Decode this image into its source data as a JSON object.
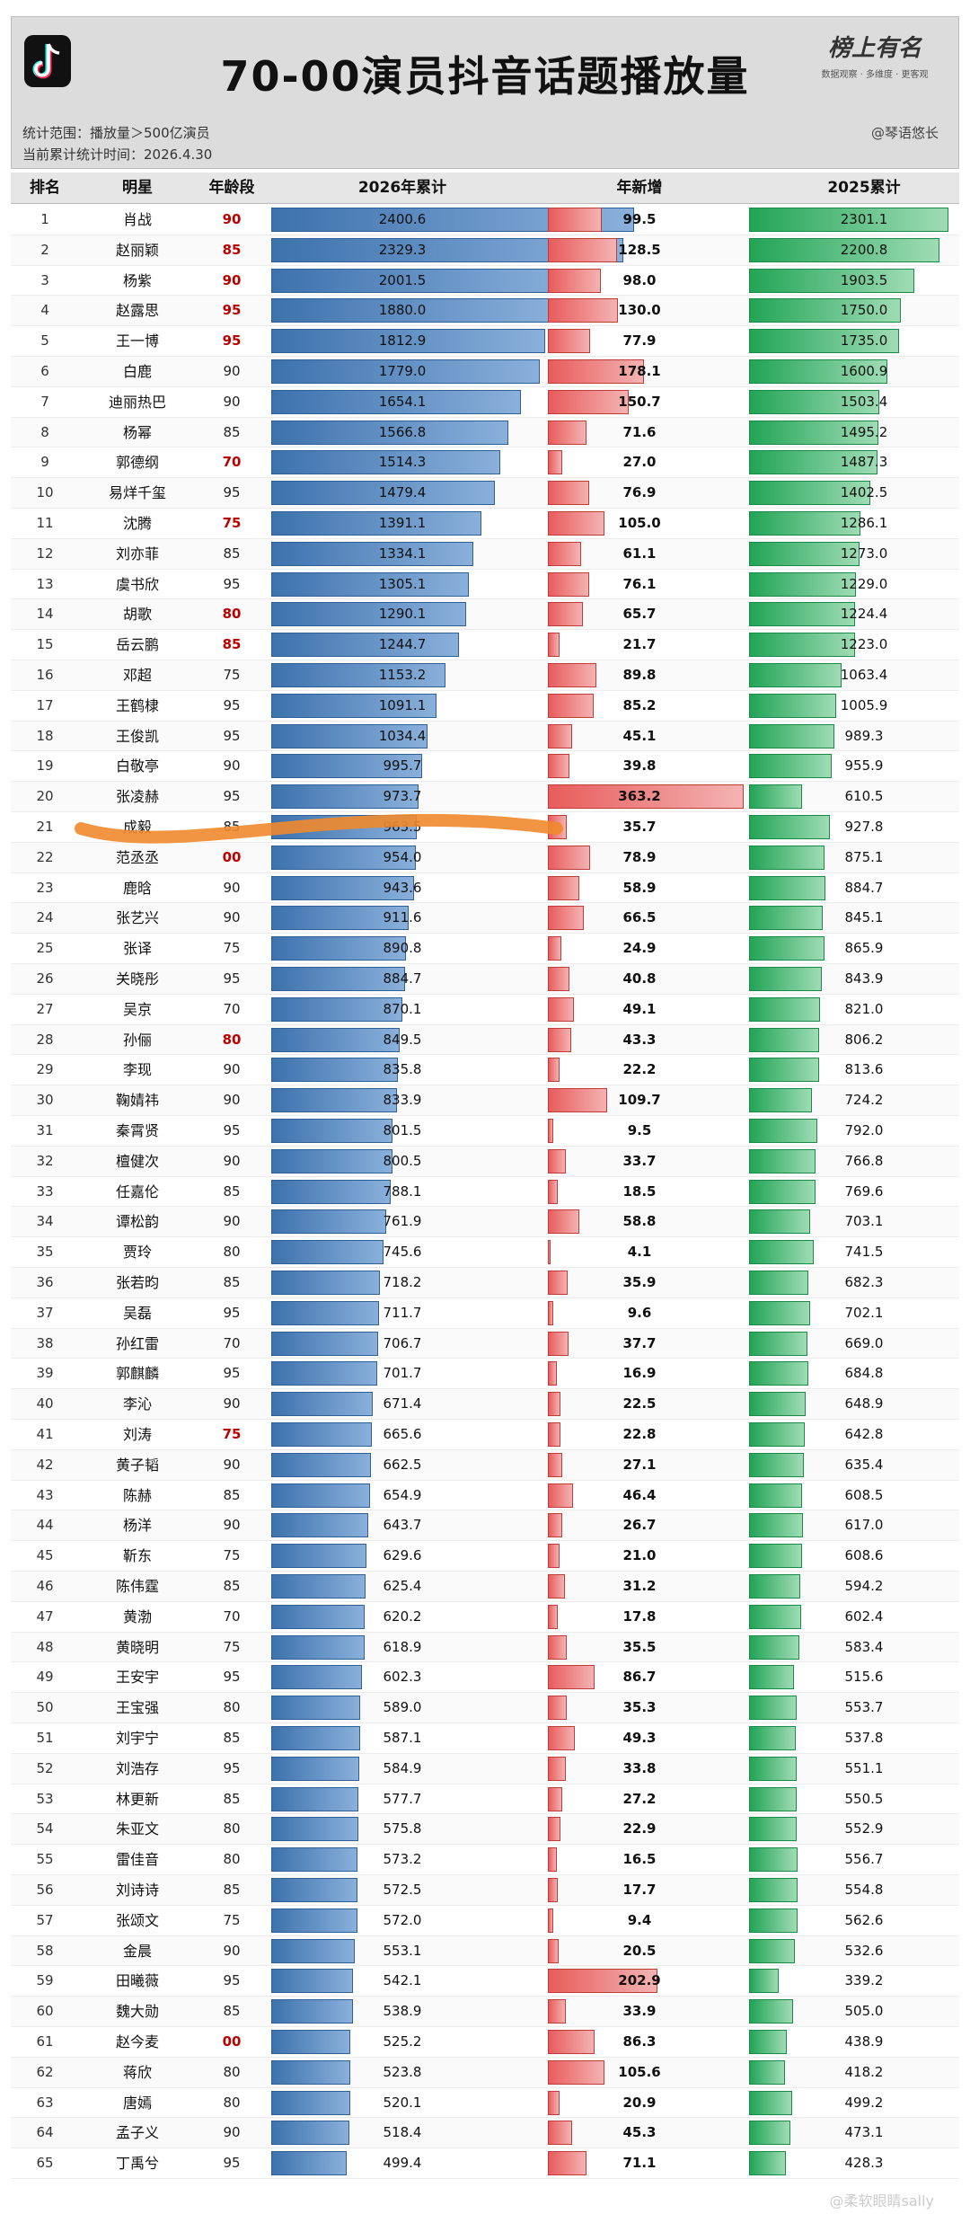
{
  "header": {
    "title": "70-00演员抖音话题播放量",
    "brand": "榜上有名",
    "brand_sub": "数据观察 · 多维度 · 更客观",
    "author": "@琴语悠长",
    "meta_scope": "统计范围：播放量＞500亿演员",
    "meta_time": "当前累计统计时间：2026.4.30"
  },
  "columns": {
    "rank": "排名",
    "name": "明星",
    "age": "年龄段",
    "c2026": "2026年累计",
    "new": "年新增",
    "c2025": "2025累计"
  },
  "colors": {
    "blue": "#3d72ad",
    "red": "#e85c5c",
    "green": "#22a456",
    "stroke": "#f08a2e",
    "age_highlight": "#b00000"
  },
  "icons": {
    "logo": "tiktok-logo-icon"
  },
  "footer": "@柔软眼睛sally",
  "chart_data": {
    "type": "table",
    "title": "70-00演员抖音话题播放量",
    "max_2026": 2400.6,
    "max_new": 363.2,
    "max_2025": 2301.1,
    "rows": [
      {
        "rank": "1",
        "name": "肖战",
        "age": "90",
        "c2026": 2400.6,
        "new": 99.5,
        "c2025": 2301.1
      },
      {
        "rank": "2",
        "name": "赵丽颖",
        "age": "85",
        "c2026": 2329.3,
        "new": 128.5,
        "c2025": 2200.8
      },
      {
        "rank": "3",
        "name": "杨紫",
        "age": "90",
        "c2026": 2001.5,
        "new": 98.0,
        "c2025": 1903.5
      },
      {
        "rank": "4",
        "name": "赵露思",
        "age": "95",
        "c2026": 1880.0,
        "new": 130.0,
        "c2025": 1750.0
      },
      {
        "rank": "5",
        "name": "王一博",
        "age": "95",
        "c2026": 1812.9,
        "new": 77.9,
        "c2025": 1735.0
      },
      {
        "rank": "6",
        "name": "白鹿",
        "age": "90",
        "c2026": 1779.0,
        "new": 178.1,
        "c2025": 1600.9
      },
      {
        "rank": "7",
        "name": "迪丽热巴",
        "age": "90",
        "c2026": 1654.1,
        "new": 150.7,
        "c2025": 1503.4
      },
      {
        "rank": "8",
        "name": "杨幂",
        "age": "85",
        "c2026": 1566.8,
        "new": 71.6,
        "c2025": 1495.2
      },
      {
        "rank": "9",
        "name": "郭德纲",
        "age": "70",
        "c2026": 1514.3,
        "new": 27.0,
        "c2025": 1487.3
      },
      {
        "rank": "10",
        "name": "易烊千玺",
        "age": "95",
        "c2026": 1479.4,
        "new": 76.9,
        "c2025": 1402.5
      },
      {
        "rank": "11",
        "name": "沈腾",
        "age": "75",
        "c2026": 1391.1,
        "new": 105.0,
        "c2025": 1286.1
      },
      {
        "rank": "12",
        "name": "刘亦菲",
        "age": "85",
        "c2026": 1334.1,
        "new": 61.1,
        "c2025": 1273.0
      },
      {
        "rank": "13",
        "name": "虞书欣",
        "age": "95",
        "c2026": 1305.1,
        "new": 76.1,
        "c2025": 1229.0
      },
      {
        "rank": "14",
        "name": "胡歌",
        "age": "80",
        "c2026": 1290.1,
        "new": 65.7,
        "c2025": 1224.4
      },
      {
        "rank": "15",
        "name": "岳云鹏",
        "age": "85",
        "c2026": 1244.7,
        "new": 21.7,
        "c2025": 1223.0
      },
      {
        "rank": "16",
        "name": "邓超",
        "age": "75",
        "c2026": 1153.2,
        "new": 89.8,
        "c2025": 1063.4
      },
      {
        "rank": "17",
        "name": "王鹤棣",
        "age": "95",
        "c2026": 1091.1,
        "new": 85.2,
        "c2025": 1005.9
      },
      {
        "rank": "18",
        "name": "王俊凯",
        "age": "95",
        "c2026": 1034.4,
        "new": 45.1,
        "c2025": 989.3
      },
      {
        "rank": "19",
        "name": "白敬亭",
        "age": "90",
        "c2026": 995.7,
        "new": 39.8,
        "c2025": 955.9
      },
      {
        "rank": "20",
        "name": "张凌赫",
        "age": "95",
        "c2026": 973.7,
        "new": 363.2,
        "c2025": 610.5
      },
      {
        "rank": "21",
        "name": "成毅",
        "age": "85",
        "c2026": 963.5,
        "new": 35.7,
        "c2025": 927.8
      },
      {
        "rank": "22",
        "name": "范丞丞",
        "age": "00",
        "c2026": 954.0,
        "new": 78.9,
        "c2025": 875.1
      },
      {
        "rank": "23",
        "name": "鹿晗",
        "age": "90",
        "c2026": 943.6,
        "new": 58.9,
        "c2025": 884.7
      },
      {
        "rank": "24",
        "name": "张艺兴",
        "age": "90",
        "c2026": 911.6,
        "new": 66.5,
        "c2025": 845.1
      },
      {
        "rank": "25",
        "name": "张译",
        "age": "75",
        "c2026": 890.8,
        "new": 24.9,
        "c2025": 865.9
      },
      {
        "rank": "26",
        "name": "关晓彤",
        "age": "95",
        "c2026": 884.7,
        "new": 40.8,
        "c2025": 843.9
      },
      {
        "rank": "27",
        "name": "吴京",
        "age": "70",
        "c2026": 870.1,
        "new": 49.1,
        "c2025": 821.0
      },
      {
        "rank": "28",
        "name": "孙俪",
        "age": "80",
        "c2026": 849.5,
        "new": 43.3,
        "c2025": 806.2
      },
      {
        "rank": "29",
        "name": "李现",
        "age": "90",
        "c2026": 835.8,
        "new": 22.2,
        "c2025": 813.6
      },
      {
        "rank": "30",
        "name": "鞠婧祎",
        "age": "90",
        "c2026": 833.9,
        "new": 109.7,
        "c2025": 724.2
      },
      {
        "rank": "31",
        "name": "秦霄贤",
        "age": "95",
        "c2026": 801.5,
        "new": 9.5,
        "c2025": 792.0
      },
      {
        "rank": "32",
        "name": "檀健次",
        "age": "90",
        "c2026": 800.5,
        "new": 33.7,
        "c2025": 766.8
      },
      {
        "rank": "33",
        "name": "任嘉伦",
        "age": "85",
        "c2026": 788.1,
        "new": 18.5,
        "c2025": 769.6
      },
      {
        "rank": "34",
        "name": "谭松韵",
        "age": "90",
        "c2026": 761.9,
        "new": 58.8,
        "c2025": 703.1
      },
      {
        "rank": "35",
        "name": "贾玲",
        "age": "80",
        "c2026": 745.6,
        "new": 4.1,
        "c2025": 741.5
      },
      {
        "rank": "36",
        "name": "张若昀",
        "age": "85",
        "c2026": 718.2,
        "new": 35.9,
        "c2025": 682.3
      },
      {
        "rank": "37",
        "name": "吴磊",
        "age": "95",
        "c2026": 711.7,
        "new": 9.6,
        "c2025": 702.1
      },
      {
        "rank": "38",
        "name": "孙红雷",
        "age": "70",
        "c2026": 706.7,
        "new": 37.7,
        "c2025": 669.0
      },
      {
        "rank": "39",
        "name": "郭麒麟",
        "age": "95",
        "c2026": 701.7,
        "new": 16.9,
        "c2025": 684.8
      },
      {
        "rank": "40",
        "name": "李沁",
        "age": "90",
        "c2026": 671.4,
        "new": 22.5,
        "c2025": 648.9
      },
      {
        "rank": "41",
        "name": "刘涛",
        "age": "75",
        "c2026": 665.6,
        "new": 22.8,
        "c2025": 642.8
      },
      {
        "rank": "42",
        "name": "黄子韬",
        "age": "90",
        "c2026": 662.5,
        "new": 27.1,
        "c2025": 635.4
      },
      {
        "rank": "43",
        "name": "陈赫",
        "age": "85",
        "c2026": 654.9,
        "new": 46.4,
        "c2025": 608.5
      },
      {
        "rank": "44",
        "name": "杨洋",
        "age": "90",
        "c2026": 643.7,
        "new": 26.7,
        "c2025": 617.0
      },
      {
        "rank": "45",
        "name": "靳东",
        "age": "75",
        "c2026": 629.6,
        "new": 21.0,
        "c2025": 608.6
      },
      {
        "rank": "46",
        "name": "陈伟霆",
        "age": "85",
        "c2026": 625.4,
        "new": 31.2,
        "c2025": 594.2
      },
      {
        "rank": "47",
        "name": "黄渤",
        "age": "70",
        "c2026": 620.2,
        "new": 17.8,
        "c2025": 602.4
      },
      {
        "rank": "48",
        "name": "黄晓明",
        "age": "75",
        "c2026": 618.9,
        "new": 35.5,
        "c2025": 583.4
      },
      {
        "rank": "49",
        "name": "王安宇",
        "age": "95",
        "c2026": 602.3,
        "new": 86.7,
        "c2025": 515.6
      },
      {
        "rank": "50",
        "name": "王宝强",
        "age": "80",
        "c2026": 589.0,
        "new": 35.3,
        "c2025": 553.7
      },
      {
        "rank": "51",
        "name": "刘宇宁",
        "age": "85",
        "c2026": 587.1,
        "new": 49.3,
        "c2025": 537.8
      },
      {
        "rank": "52",
        "name": "刘浩存",
        "age": "95",
        "c2026": 584.9,
        "new": 33.8,
        "c2025": 551.1
      },
      {
        "rank": "53",
        "name": "林更新",
        "age": "85",
        "c2026": 577.7,
        "new": 27.2,
        "c2025": 550.5
      },
      {
        "rank": "54",
        "name": "朱亚文",
        "age": "80",
        "c2026": 575.8,
        "new": 22.9,
        "c2025": 552.9
      },
      {
        "rank": "55",
        "name": "雷佳音",
        "age": "80",
        "c2026": 573.2,
        "new": 16.5,
        "c2025": 556.7
      },
      {
        "rank": "56",
        "name": "刘诗诗",
        "age": "85",
        "c2026": 572.5,
        "new": 17.7,
        "c2025": 554.8
      },
      {
        "rank": "57",
        "name": "张颂文",
        "age": "75",
        "c2026": 572.0,
        "new": 9.4,
        "c2025": 562.6
      },
      {
        "rank": "58",
        "name": "金晨",
        "age": "90",
        "c2026": 553.1,
        "new": 20.5,
        "c2025": 532.6
      },
      {
        "rank": "59",
        "name": "田曦薇",
        "age": "95",
        "c2026": 542.1,
        "new": 202.9,
        "c2025": 339.2
      },
      {
        "rank": "60",
        "name": "魏大勋",
        "age": "85",
        "c2026": 538.9,
        "new": 33.9,
        "c2025": 505.0
      },
      {
        "rank": "61",
        "name": "赵今麦",
        "age": "00",
        "c2026": 525.2,
        "new": 86.3,
        "c2025": 438.9
      },
      {
        "rank": "62",
        "name": "蒋欣",
        "age": "80",
        "c2026": 523.8,
        "new": 105.6,
        "c2025": 418.2
      },
      {
        "rank": "63",
        "name": "唐嫣",
        "age": "80",
        "c2026": 520.1,
        "new": 20.9,
        "c2025": 499.2
      },
      {
        "rank": "64",
        "name": "孟子义",
        "age": "90",
        "c2026": 518.4,
        "new": 45.3,
        "c2025": 473.1
      },
      {
        "rank": "65",
        "name": "丁禹兮",
        "age": "95",
        "c2026": 499.4,
        "new": 71.1,
        "c2025": 428.3
      }
    ],
    "highlight_ages": [
      "90:1",
      "85:2",
      "90:3",
      "95:4",
      "95:5",
      "70:9",
      "75:11",
      "80:14",
      "85:15",
      "00:22",
      "80:28",
      "75:41",
      "00:61"
    ]
  }
}
